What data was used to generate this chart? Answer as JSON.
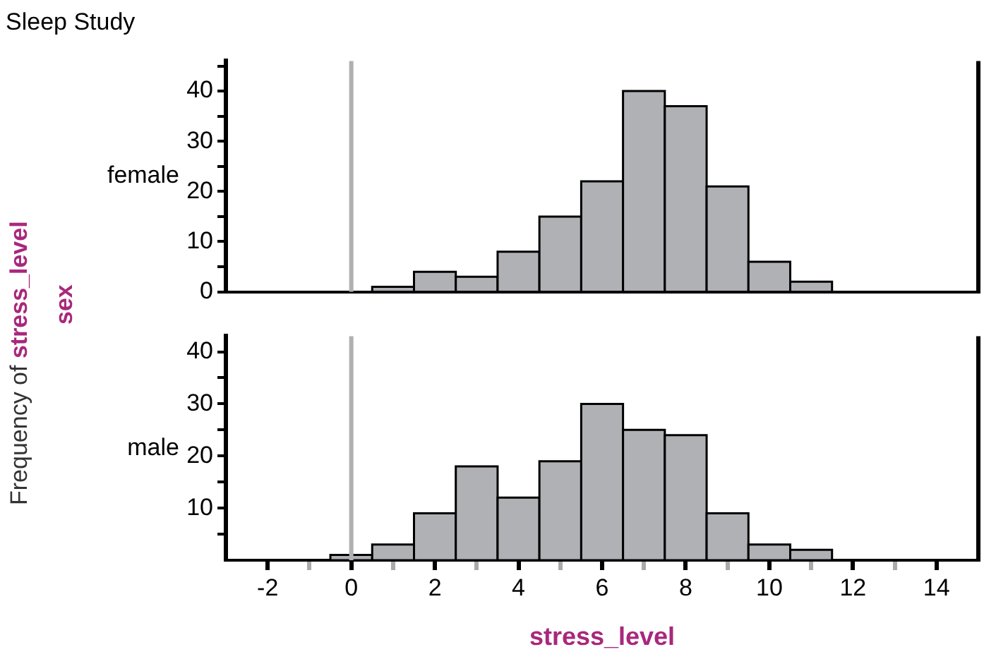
{
  "chart_data": [
    {
      "type": "histogram",
      "title": "Sleep Study",
      "ylabel": "female",
      "annotations": [
        "Frequency of stress_level",
        "sex"
      ],
      "bins": [
        0.5,
        1.5,
        2.5,
        3.5,
        4.5,
        5.5,
        6.5,
        7.5,
        8.5,
        9.5,
        10.5,
        11.5
      ],
      "values": [
        1,
        4,
        3,
        8,
        15,
        22,
        40,
        37,
        21,
        6,
        2
      ],
      "color": "#b0b1b5",
      "xlim": [
        -3,
        15
      ],
      "ylim": [
        0,
        46
      ],
      "yticks": [
        0,
        {
          "value": 5,
          "label": null
        },
        10,
        {
          "value": 15,
          "label": null
        },
        20,
        {
          "value": 25,
          "label": null
        },
        30,
        {
          "value": 35,
          "label": null
        },
        40,
        {
          "value": 45,
          "label": null
        }
      ],
      "tick_labels": "y",
      "grid": false,
      "legend": false,
      "ref_lines": [
        {
          "axis": "x",
          "value": 0,
          "color": "#b0b0b0"
        }
      ]
    },
    {
      "type": "histogram",
      "ylabel": "male",
      "xlabel": "stress_level",
      "bins": [
        -0.5,
        0.5,
        1.5,
        2.5,
        3.5,
        4.5,
        5.5,
        6.5,
        7.5,
        8.5,
        9.5,
        10.5,
        11.5
      ],
      "values": [
        1,
        3,
        9,
        18,
        12,
        19,
        30,
        25,
        24,
        9,
        3,
        2
      ],
      "color": "#b0b1b5",
      "xlim": [
        -3,
        15
      ],
      "xticks": [
        -2,
        {
          "value": -1,
          "label": null
        },
        0,
        {
          "value": 1,
          "label": null
        },
        2,
        {
          "value": 3,
          "label": null
        },
        4,
        {
          "value": 5,
          "label": null
        },
        6,
        {
          "value": 7,
          "label": null
        },
        8,
        {
          "value": 9,
          "label": null
        },
        10,
        {
          "value": 11,
          "label": null
        },
        12,
        {
          "value": 13,
          "label": null
        },
        14
      ],
      "ylim": [
        0,
        43
      ],
      "yticks": [
        {
          "value": 5,
          "label": null
        },
        10,
        {
          "value": 15,
          "label": null
        },
        20,
        {
          "value": 25,
          "label": null
        },
        30,
        {
          "value": 35,
          "label": null
        },
        40
      ],
      "grid": false,
      "legend": false,
      "ref_lines": [
        {
          "axis": "x",
          "value": 0,
          "color": "#b0b0b0"
        }
      ]
    }
  ]
}
